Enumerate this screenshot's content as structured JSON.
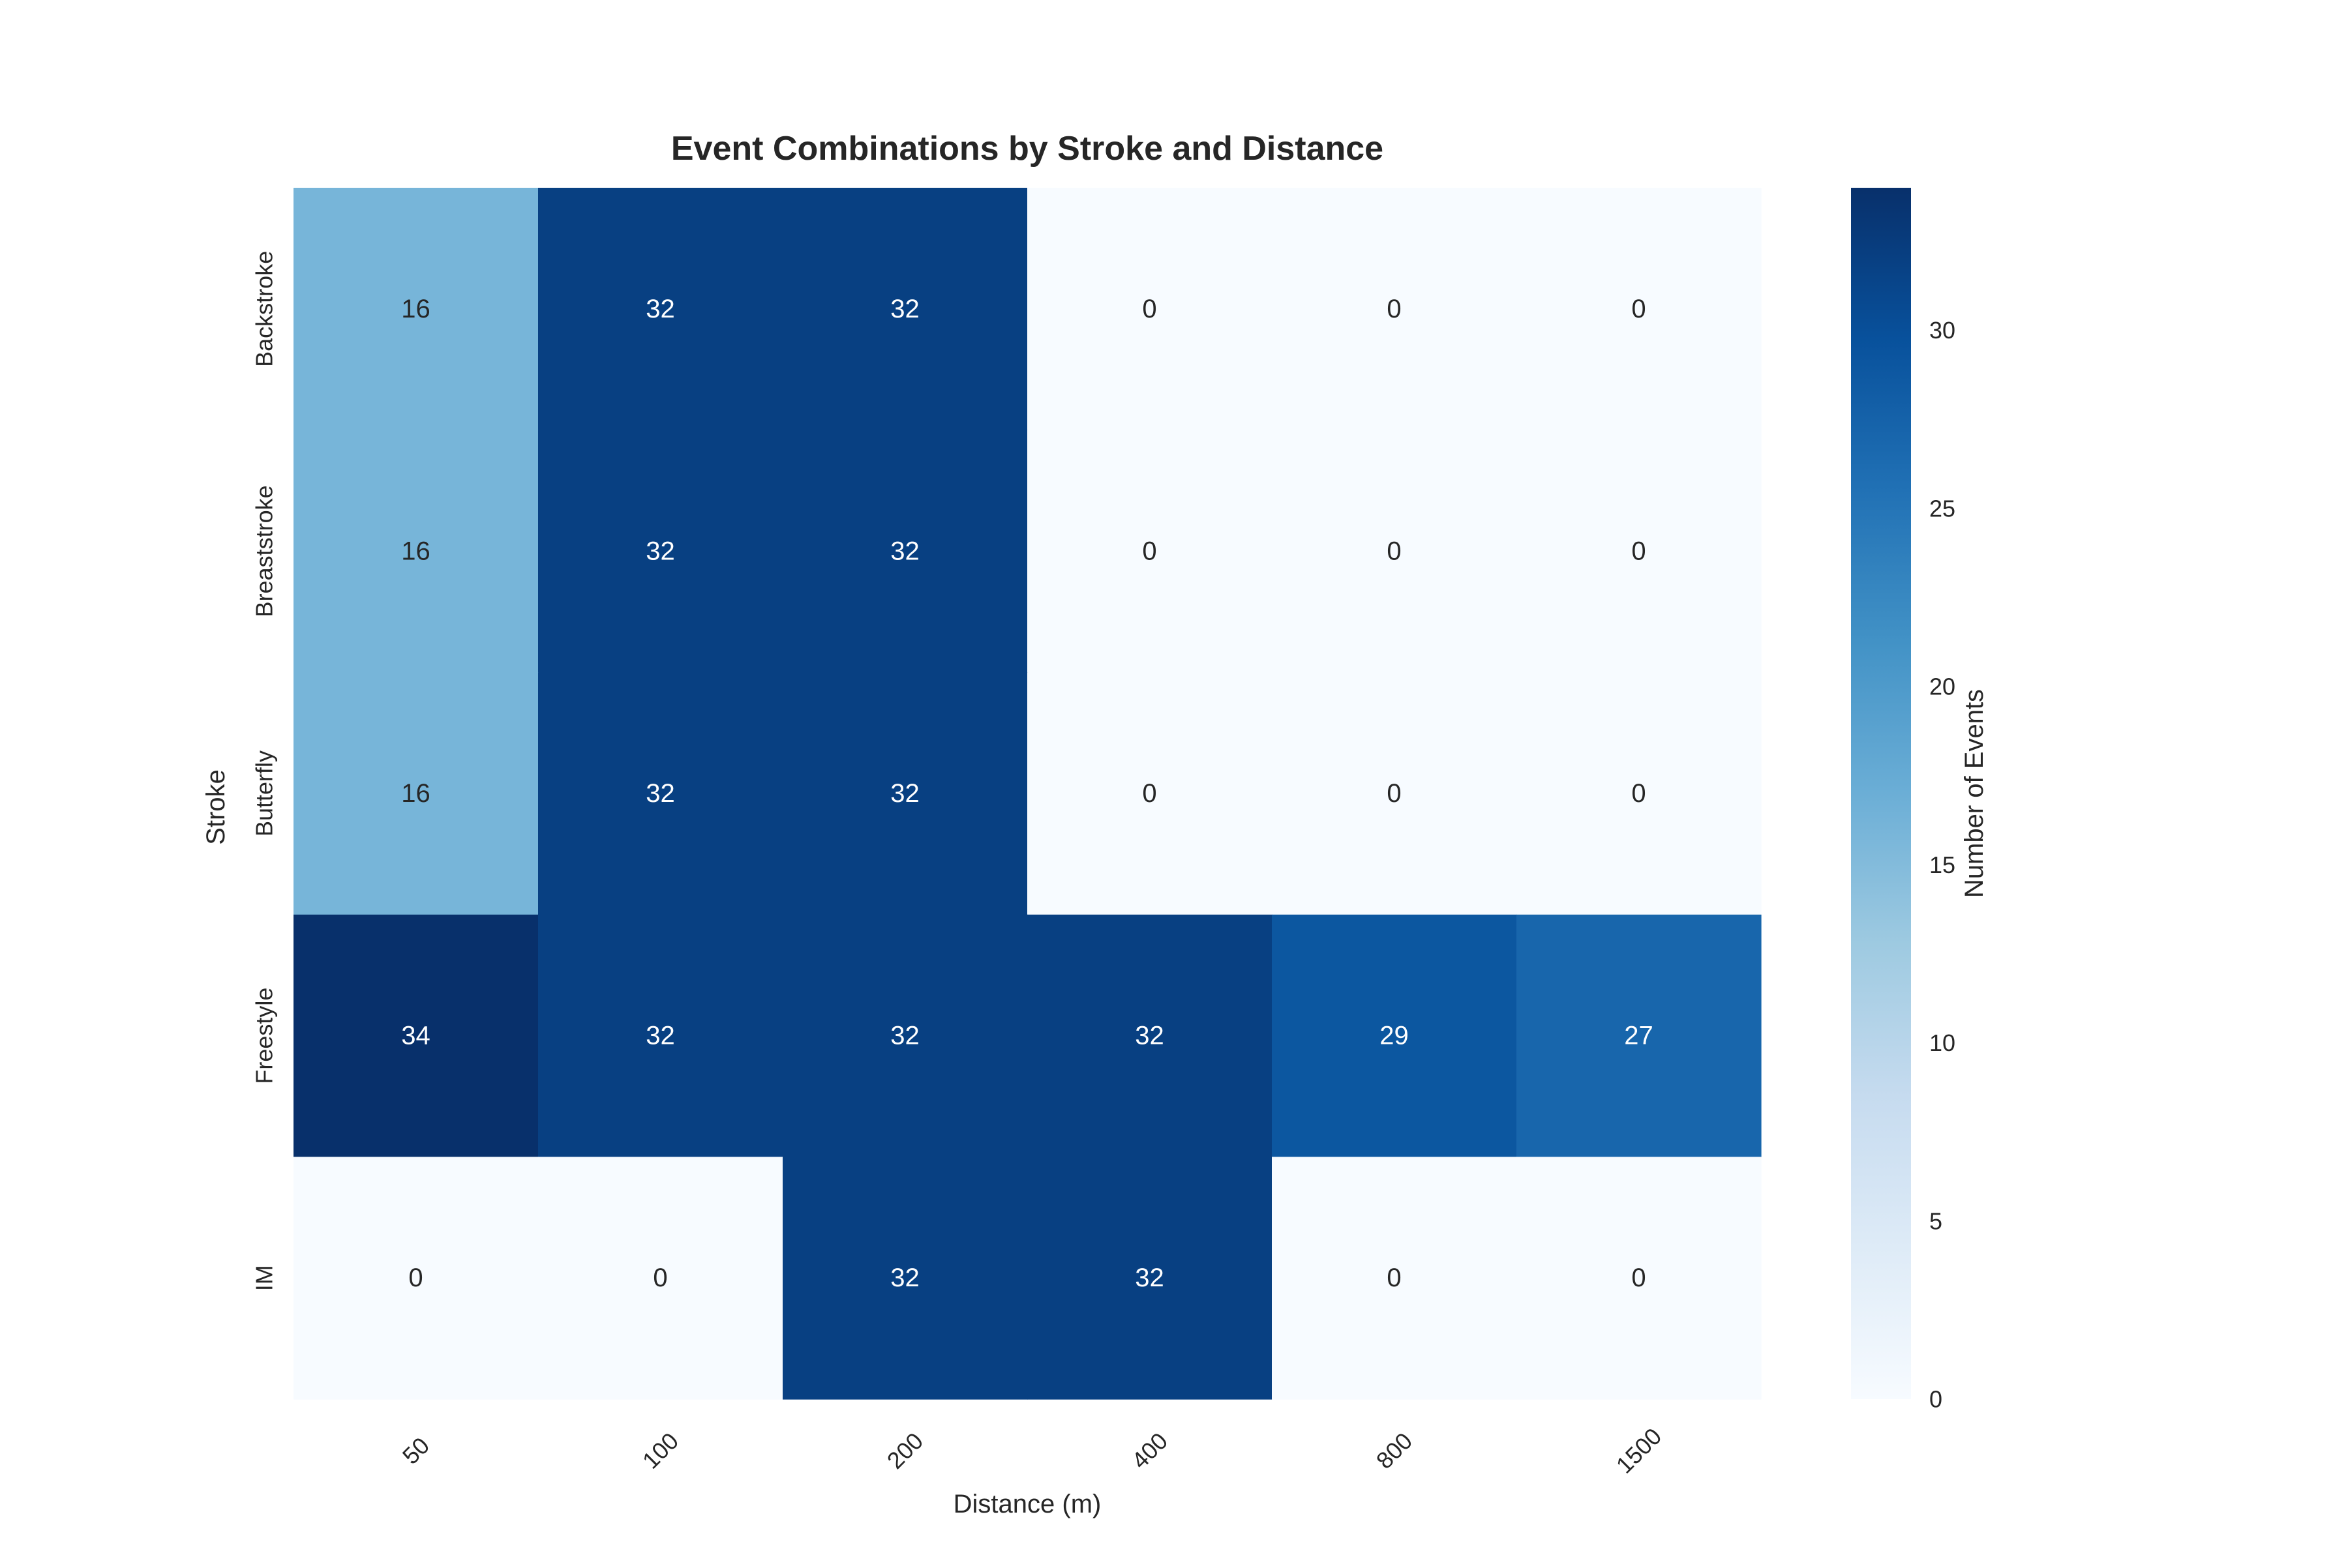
{
  "chart_data": {
    "type": "heatmap",
    "title": "Event Combinations by Stroke and Distance",
    "xlabel": "Distance (m)",
    "ylabel": "Stroke",
    "x_categories": [
      "50",
      "100",
      "200",
      "400",
      "800",
      "1500"
    ],
    "y_categories": [
      "Backstroke",
      "Breaststroke",
      "Butterfly",
      "Freestyle",
      "IM"
    ],
    "values": [
      [
        16,
        32,
        32,
        0,
        0,
        0
      ],
      [
        16,
        32,
        32,
        0,
        0,
        0
      ],
      [
        16,
        32,
        32,
        0,
        0,
        0
      ],
      [
        34,
        32,
        32,
        32,
        29,
        27
      ],
      [
        0,
        0,
        32,
        32,
        0,
        0
      ]
    ],
    "annotations_shown": true,
    "colormap": "Blues",
    "color_range": [
      0,
      34
    ],
    "colorbar": {
      "label": "Number of Events",
      "ticks": [
        0,
        5,
        10,
        15,
        20,
        25,
        30
      ]
    },
    "grid": false
  }
}
